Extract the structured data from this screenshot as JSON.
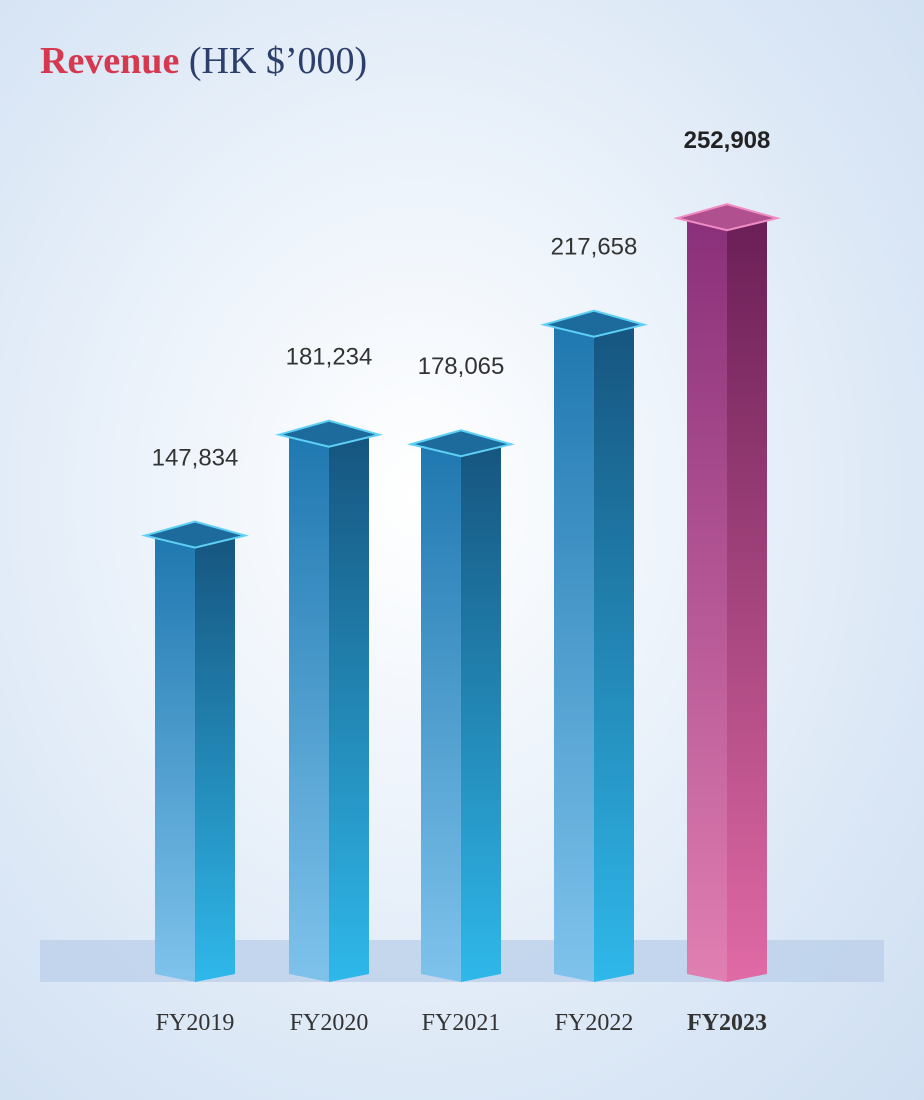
{
  "title": {
    "main": "Revenue",
    "unit": "(HK $’000)"
  },
  "chart_data": {
    "type": "bar",
    "title": "Revenue (HK $’000)",
    "xlabel": "",
    "ylabel": "",
    "categories": [
      "FY2019",
      "FY2020",
      "FY2021",
      "FY2022",
      "FY2023"
    ],
    "values": [
      147834,
      181234,
      178065,
      217658,
      252908
    ],
    "value_labels": [
      "147,834",
      "181,234",
      "178,065",
      "217,658",
      "252,908"
    ],
    "highlight_category": "FY2023",
    "ylim": [
      0,
      300000
    ],
    "grid": false,
    "legend": "none",
    "colors": {
      "bar": "#1f78b0",
      "bar_light": "#7fc3ec",
      "bar_side_dark": "#16557f",
      "bar_side_light": "#2fb8ea",
      "highlight": "#8a2f7a",
      "highlight_light": "#e07fb1",
      "highlight_side_dark": "#6a1f56",
      "highlight_side_light": "#e06aa5"
    }
  }
}
